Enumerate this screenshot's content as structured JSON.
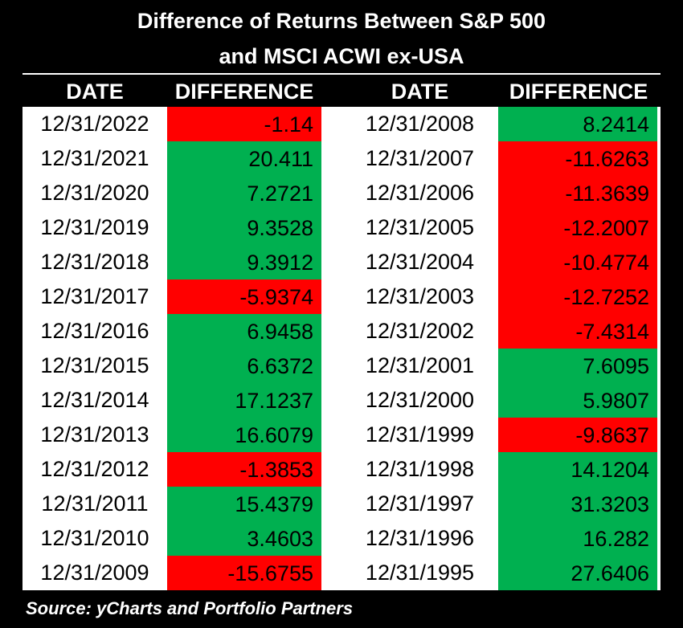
{
  "chart_data": {
    "type": "table",
    "title_line1": "Difference of Returns Between S&P 500",
    "title_line2": "and MSCI ACWI ex-USA",
    "columns": [
      "DATE",
      "DIFFERENCE",
      "DATE",
      "DIFFERENCE"
    ],
    "left": [
      {
        "date": "12/31/2022",
        "value": "-1.14"
      },
      {
        "date": "12/31/2021",
        "value": "20.411"
      },
      {
        "date": "12/31/2020",
        "value": "7.2721"
      },
      {
        "date": "12/31/2019",
        "value": "9.3528"
      },
      {
        "date": "12/31/2018",
        "value": "9.3912"
      },
      {
        "date": "12/31/2017",
        "value": "-5.9374"
      },
      {
        "date": "12/31/2016",
        "value": "6.9458"
      },
      {
        "date": "12/31/2015",
        "value": "6.6372"
      },
      {
        "date": "12/31/2014",
        "value": "17.1237"
      },
      {
        "date": "12/31/2013",
        "value": "16.6079"
      },
      {
        "date": "12/31/2012",
        "value": "-1.3853"
      },
      {
        "date": "12/31/2011",
        "value": "15.4379"
      },
      {
        "date": "12/31/2010",
        "value": "3.4603"
      },
      {
        "date": "12/31/2009",
        "value": "-15.6755"
      }
    ],
    "right": [
      {
        "date": "12/31/2008",
        "value": "8.2414"
      },
      {
        "date": "12/31/2007",
        "value": "-11.6263"
      },
      {
        "date": "12/31/2006",
        "value": "-11.3639"
      },
      {
        "date": "12/31/2005",
        "value": "-12.2007"
      },
      {
        "date": "12/31/2004",
        "value": "-10.4774"
      },
      {
        "date": "12/31/2003",
        "value": "-12.7252"
      },
      {
        "date": "12/31/2002",
        "value": "-7.4314"
      },
      {
        "date": "12/31/2001",
        "value": "7.6095"
      },
      {
        "date": "12/31/2000",
        "value": "5.9807"
      },
      {
        "date": "12/31/1999",
        "value": "-9.8637"
      },
      {
        "date": "12/31/1998",
        "value": "14.1204"
      },
      {
        "date": "12/31/1997",
        "value": "31.3203"
      },
      {
        "date": "12/31/1996",
        "value": "16.282"
      },
      {
        "date": "12/31/1995",
        "value": "27.6406"
      }
    ],
    "colors": {
      "positive": "#00b050",
      "negative": "#ff0000",
      "background": "#000000",
      "table_background": "#ffffff"
    },
    "source": "Source: yCharts and Portfolio Partners"
  }
}
